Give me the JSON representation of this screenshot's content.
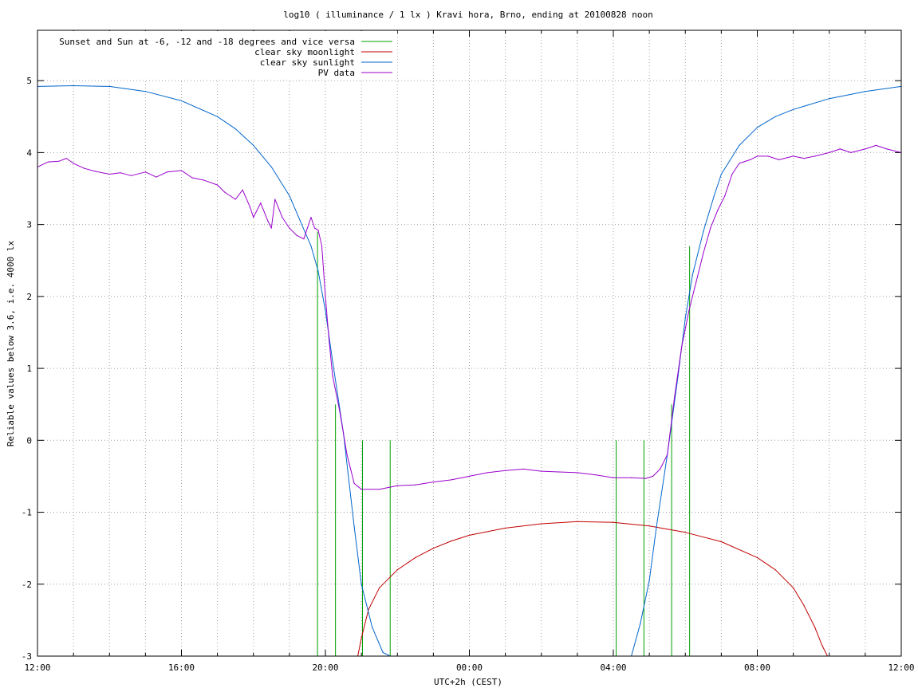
{
  "chart_data": {
    "type": "line",
    "title": "log10 ( illuminance / 1 lx ) Kravi hora, Brno, ending at 20100828 noon",
    "xlabel": "UTC+2h (CEST)",
    "ylabel": "Reliable values below 3.6, i.e. 4000 lx",
    "xlim": [
      12,
      36
    ],
    "ylim": [
      -3,
      5.7
    ],
    "x_ticks": [
      {
        "x": 12,
        "label": "12:00"
      },
      {
        "x": 16,
        "label": "16:00"
      },
      {
        "x": 20,
        "label": "20:00"
      },
      {
        "x": 24,
        "label": "00:00"
      },
      {
        "x": 28,
        "label": "04:00"
      },
      {
        "x": 32,
        "label": "08:00"
      },
      {
        "x": 36,
        "label": "12:00"
      }
    ],
    "y_ticks": [
      {
        "y": -3,
        "label": "-3"
      },
      {
        "y": -2,
        "label": "-2"
      },
      {
        "y": -1,
        "label": "-1"
      },
      {
        "y": 0,
        "label": "0"
      },
      {
        "y": 1,
        "label": "1"
      },
      {
        "y": 2,
        "label": "2"
      },
      {
        "y": 3,
        "label": "3"
      },
      {
        "y": 4,
        "label": "4"
      },
      {
        "y": 5,
        "label": "5"
      }
    ],
    "grid": true,
    "legend_position": "top-left",
    "series": [
      {
        "name": "Sunset and Sun at -6, -12 and -18 degrees and vice versa",
        "color": "#00a000",
        "style": "vertical-lines",
        "events": [
          {
            "x": 19.78,
            "y_top": 2.9
          },
          {
            "x": 20.28,
            "y_top": 0.5
          },
          {
            "x": 21.03,
            "y_top": 0.0
          },
          {
            "x": 21.8,
            "y_top": 0.0
          },
          {
            "x": 28.08,
            "y_top": 0.0
          },
          {
            "x": 28.85,
            "y_top": 0.0
          },
          {
            "x": 29.62,
            "y_top": 0.5
          },
          {
            "x": 30.12,
            "y_top": 2.7
          }
        ],
        "y_bottom": -3
      },
      {
        "name": "clear sky moonlight",
        "color": "#c00000",
        "x": [
          20.9,
          21.0,
          21.2,
          21.5,
          22.0,
          22.5,
          23.0,
          23.5,
          24.0,
          25.0,
          26.0,
          27.0,
          28.0,
          29.0,
          30.0,
          31.0,
          32.0,
          32.5,
          33.0,
          33.3,
          33.6,
          33.8,
          33.95
        ],
        "y": [
          -3.0,
          -2.75,
          -2.35,
          -2.05,
          -1.8,
          -1.63,
          -1.5,
          -1.4,
          -1.32,
          -1.22,
          -1.16,
          -1.13,
          -1.14,
          -1.19,
          -1.28,
          -1.41,
          -1.63,
          -1.8,
          -2.05,
          -2.3,
          -2.6,
          -2.85,
          -3.0
        ]
      },
      {
        "name": "clear sky sunlight",
        "color": "#0066cc",
        "x": [
          12.0,
          13.0,
          14.0,
          15.0,
          16.0,
          17.0,
          17.5,
          18.0,
          18.5,
          19.0,
          19.3,
          19.6,
          19.8,
          20.0,
          20.2,
          20.5,
          20.8,
          21.0,
          21.3,
          21.6,
          21.8,
          28.5,
          28.75,
          29.0,
          29.2,
          29.5,
          29.8,
          30.0,
          30.2,
          30.5,
          30.8,
          31.0,
          31.5,
          32.0,
          32.5,
          33.0,
          34.0,
          35.0,
          36.0
        ],
        "y": [
          4.92,
          4.93,
          4.92,
          4.85,
          4.72,
          4.5,
          4.33,
          4.1,
          3.8,
          3.4,
          3.05,
          2.7,
          2.35,
          1.8,
          1.1,
          0.1,
          -1.2,
          -2.0,
          -2.6,
          -2.95,
          -3.0,
          -3.0,
          -2.55,
          -1.95,
          -1.2,
          -0.2,
          0.9,
          1.7,
          2.3,
          2.9,
          3.4,
          3.7,
          4.1,
          4.35,
          4.5,
          4.6,
          4.75,
          4.85,
          4.92
        ]
      },
      {
        "name": "PV data",
        "color": "#9900cc",
        "x": [
          12.0,
          12.3,
          12.6,
          12.8,
          13.0,
          13.3,
          13.6,
          14.0,
          14.3,
          14.6,
          15.0,
          15.3,
          15.6,
          16.0,
          16.3,
          16.6,
          17.0,
          17.2,
          17.5,
          17.7,
          17.9,
          18.0,
          18.2,
          18.4,
          18.5,
          18.6,
          18.8,
          19.0,
          19.2,
          19.4,
          19.5,
          19.6,
          19.7,
          19.8,
          19.9,
          20.0,
          20.1,
          20.2,
          20.4,
          20.6,
          20.8,
          21.0,
          21.5,
          22.0,
          22.5,
          23.0,
          23.5,
          24.0,
          24.5,
          25.0,
          25.5,
          26.0,
          26.5,
          27.0,
          27.5,
          28.0,
          28.5,
          28.9,
          29.1,
          29.3,
          29.5,
          29.7,
          29.9,
          30.1,
          30.3,
          30.5,
          30.7,
          30.9,
          31.1,
          31.3,
          31.5,
          31.8,
          32.0,
          32.3,
          32.6,
          33.0,
          33.3,
          33.6,
          34.0,
          34.3,
          34.6,
          35.0,
          35.3,
          35.6,
          36.0
        ],
        "y": [
          3.8,
          3.87,
          3.88,
          3.92,
          3.85,
          3.78,
          3.74,
          3.7,
          3.72,
          3.68,
          3.73,
          3.66,
          3.73,
          3.75,
          3.65,
          3.62,
          3.55,
          3.45,
          3.35,
          3.48,
          3.25,
          3.1,
          3.3,
          3.05,
          2.95,
          3.35,
          3.1,
          2.95,
          2.85,
          2.8,
          2.95,
          3.1,
          2.95,
          2.92,
          2.7,
          2.0,
          1.4,
          0.9,
          0.4,
          -0.2,
          -0.6,
          -0.68,
          -0.68,
          -0.63,
          -0.62,
          -0.58,
          -0.55,
          -0.5,
          -0.45,
          -0.42,
          -0.4,
          -0.43,
          -0.44,
          -0.45,
          -0.48,
          -0.52,
          -0.52,
          -0.53,
          -0.5,
          -0.4,
          -0.2,
          0.6,
          1.3,
          1.8,
          2.2,
          2.6,
          2.95,
          3.2,
          3.4,
          3.7,
          3.85,
          3.9,
          3.95,
          3.95,
          3.9,
          3.95,
          3.92,
          3.95,
          4.0,
          4.05,
          4.0,
          4.05,
          4.1,
          4.05,
          4.0
        ]
      }
    ]
  }
}
